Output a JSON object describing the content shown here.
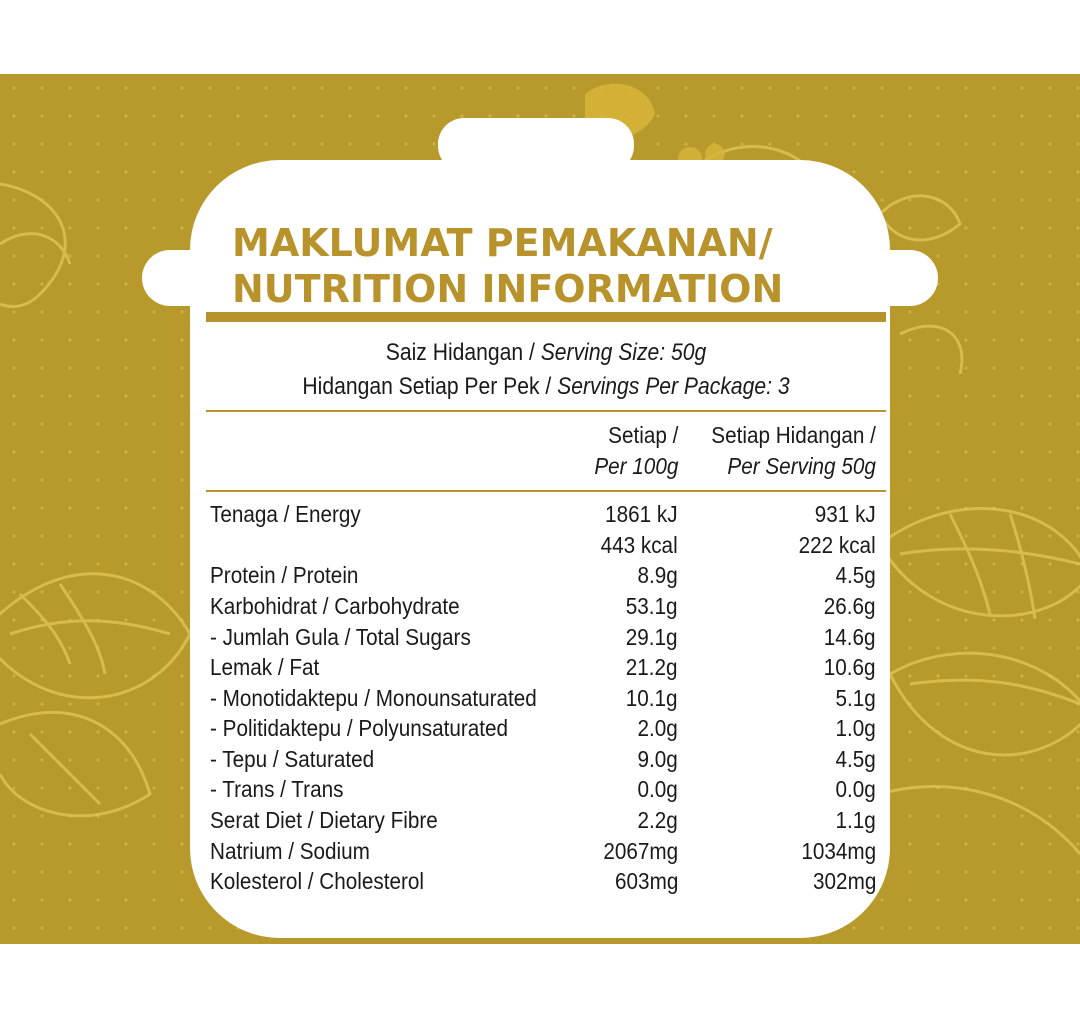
{
  "title": {
    "line1": "MAKLUMAT PEMAKANAN/",
    "line2": "NUTRITION INFORMATION"
  },
  "serving": {
    "size_ms": "Saiz Hidangan / ",
    "size_en": "Serving Size: 50g",
    "per_pack_ms": "Hidangan Setiap Per Pek / ",
    "per_pack_en": "Servings Per Package: 3"
  },
  "columns": {
    "per100_ms": "Setiap /",
    "per100_en": "Per 100g",
    "perserving_ms": "Setiap Hidangan /",
    "perserving_en": "Per Serving 50g"
  },
  "rows": [
    {
      "name": "Tenaga / Energy",
      "per100": "1861 kJ",
      "perserving": "931 kJ"
    },
    {
      "name": "",
      "per100": "443 kcal",
      "perserving": "222 kcal"
    },
    {
      "name": "Protein / Protein",
      "per100": "8.9g",
      "perserving": "4.5g"
    },
    {
      "name": "Karbohidrat / Carbohydrate",
      "per100": "53.1g",
      "perserving": "26.6g"
    },
    {
      "name": "- Jumlah Gula / Total Sugars",
      "per100": "29.1g",
      "perserving": "14.6g"
    },
    {
      "name": "Lemak / Fat",
      "per100": "21.2g",
      "perserving": "10.6g"
    },
    {
      "name": "- Monotidaktepu / Monounsaturated",
      "per100": "10.1g",
      "perserving": "5.1g"
    },
    {
      "name": "- Politidaktepu / Polyunsaturated",
      "per100": "2.0g",
      "perserving": "1.0g"
    },
    {
      "name": "- Tepu / Saturated",
      "per100": "9.0g",
      "perserving": "4.5g"
    },
    {
      "name": "- Trans / Trans",
      "per100": "0.0g",
      "perserving": "0.0g"
    },
    {
      "name": "Serat Diet / Dietary Fibre",
      "per100": "2.2g",
      "perserving": "1.1g"
    },
    {
      "name": "Natrium / Sodium",
      "per100": "2067mg",
      "perserving": "1034mg"
    },
    {
      "name": "Kolesterol / Cholesterol",
      "per100": "603mg",
      "perserving": "302mg"
    }
  ],
  "colors": {
    "background": "#b8992b",
    "accent": "#b8922a",
    "label": "#ffffff"
  },
  "icons": {
    "background_pattern": "leaf-outline-icon",
    "label_shape": "cooking-pot-icon"
  }
}
